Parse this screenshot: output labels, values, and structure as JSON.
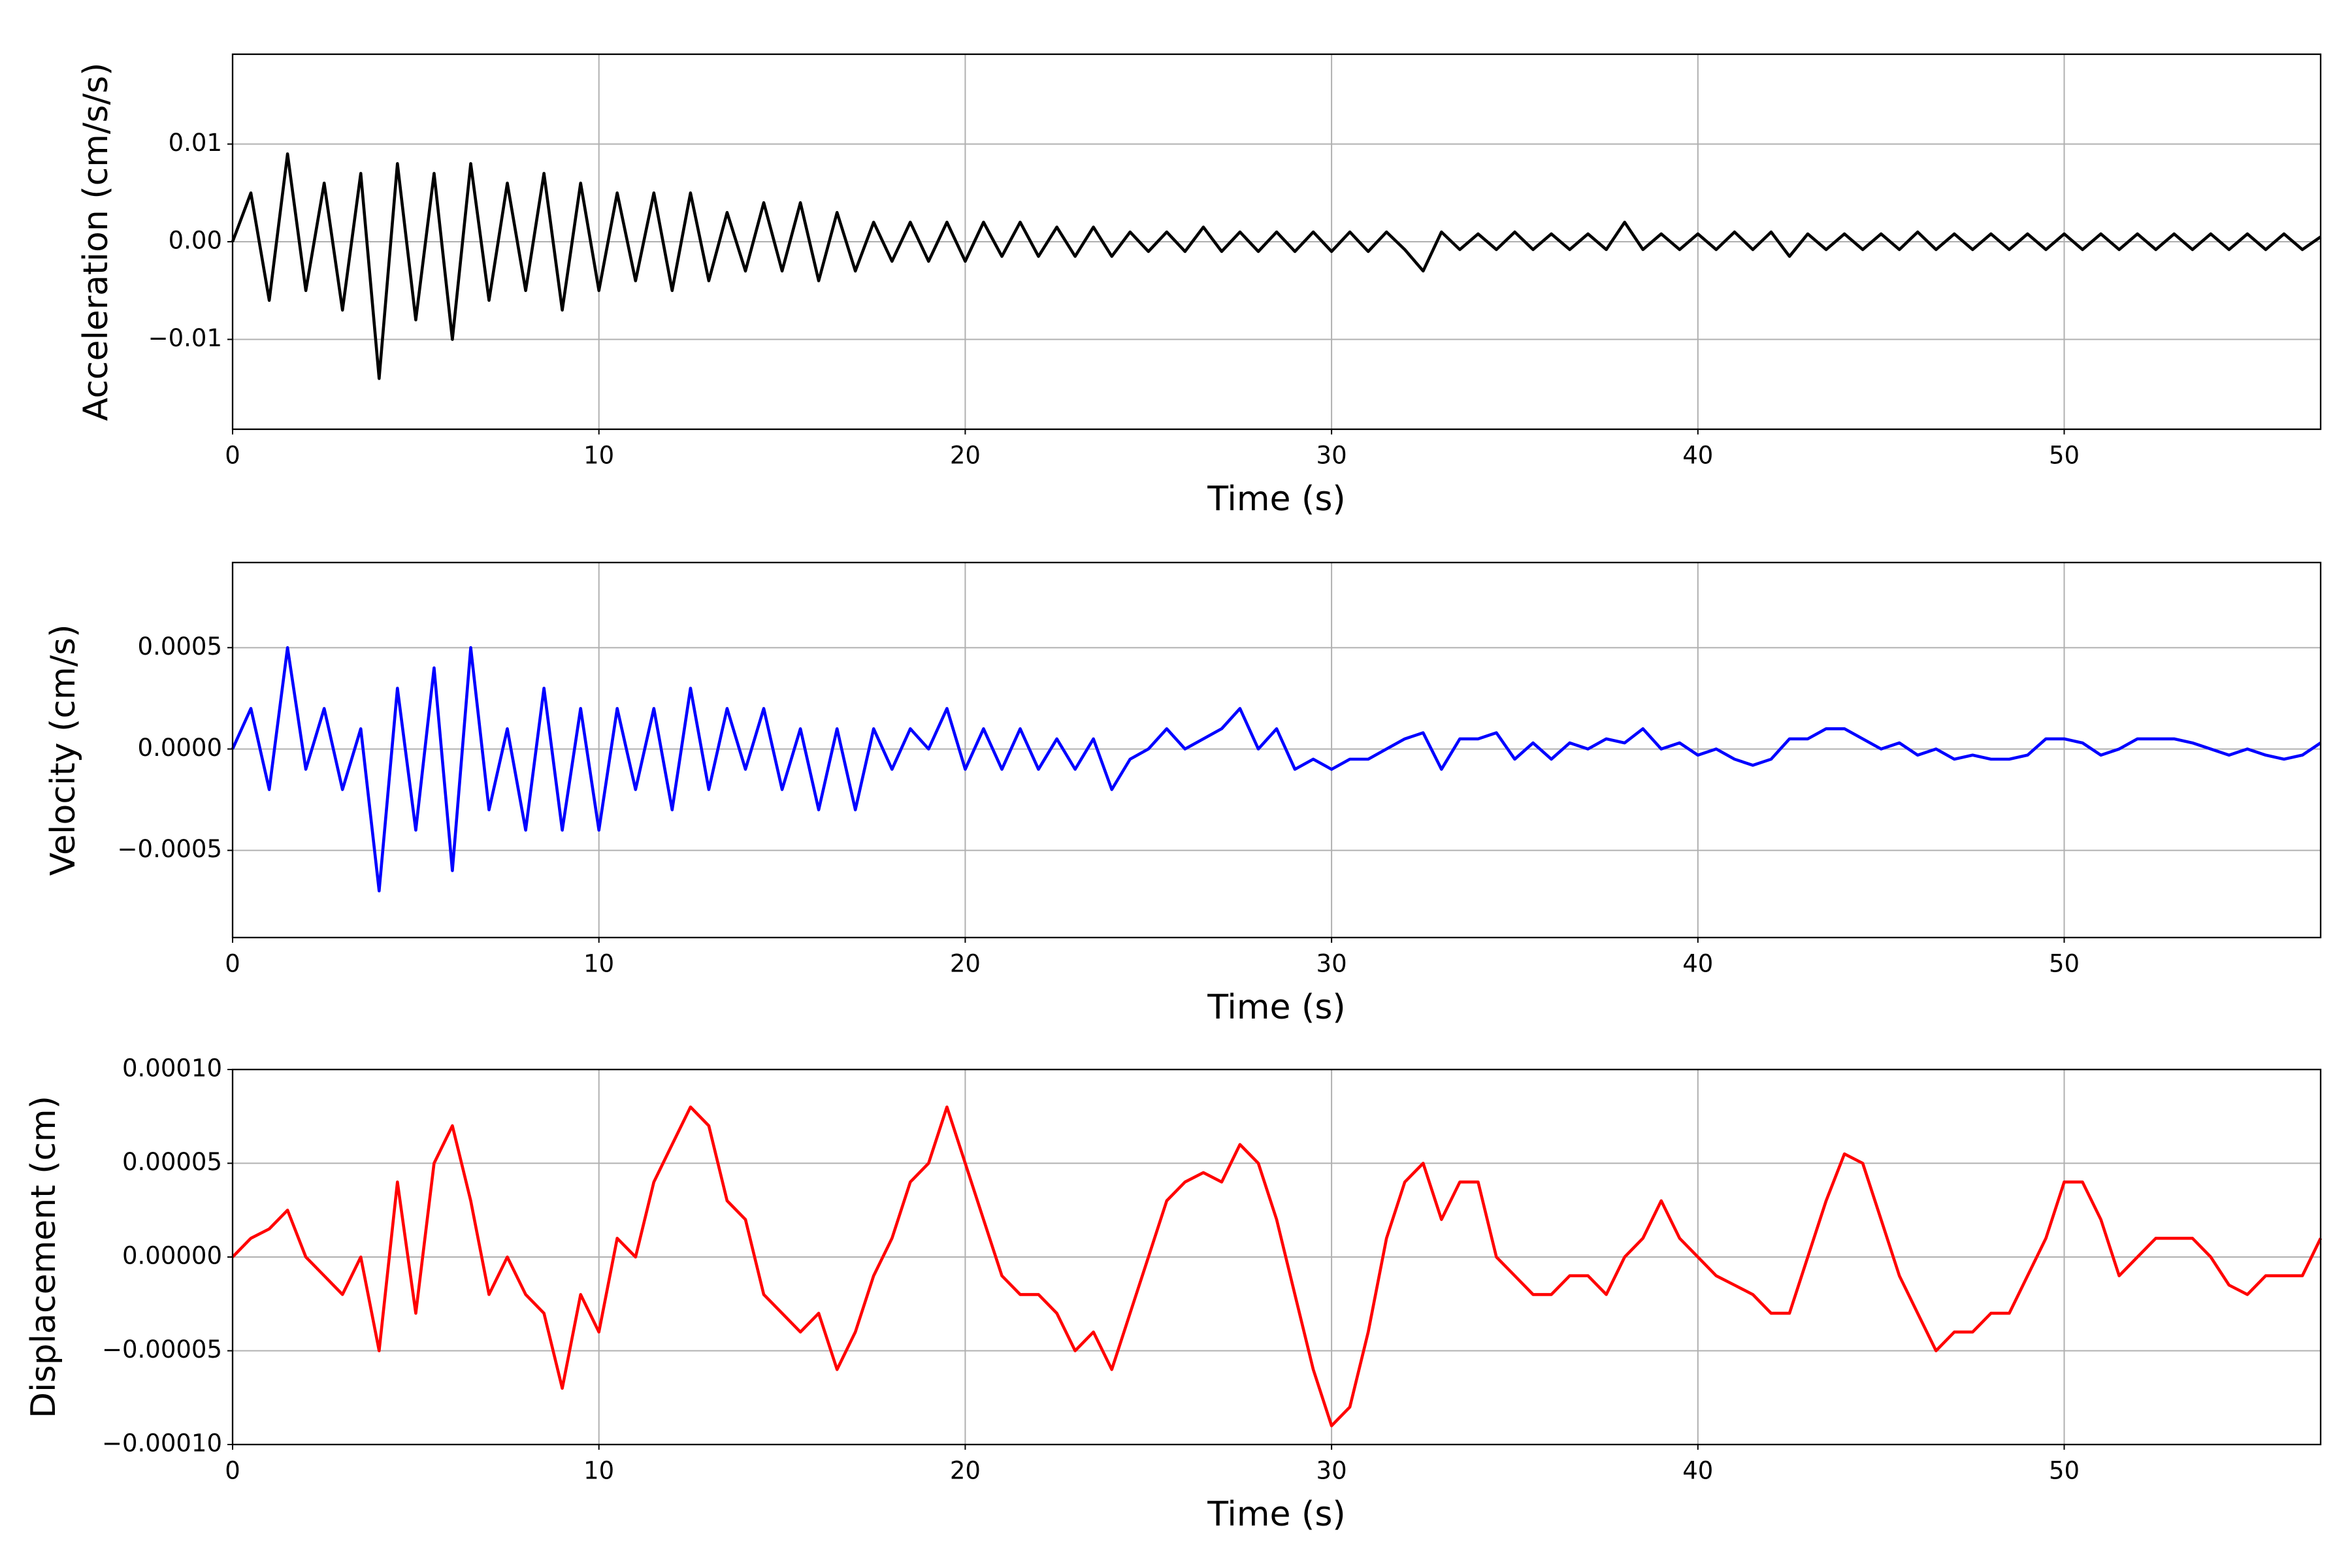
{
  "chart_data": [
    {
      "type": "line",
      "xlabel": "Time (s)",
      "ylabel": "Acceleration (cm/s/s)",
      "color": "#000000",
      "grid": true,
      "xlim": [
        0,
        57
      ],
      "xticks": [
        0,
        10,
        20,
        30,
        40,
        50
      ],
      "ylim": [
        -0.0192,
        0.0192
      ],
      "yticks": [
        {
          "value": -0.01,
          "label": "−0.01"
        },
        {
          "value": 0,
          "label": "0.00"
        },
        0.01
      ],
      "x": [
        0,
        0.5,
        1,
        1.5,
        2,
        2.5,
        3,
        3.5,
        4,
        4.5,
        5,
        5.5,
        6,
        6.5,
        7,
        7.5,
        8,
        8.5,
        9,
        9.5,
        10,
        10.5,
        11,
        11.5,
        12,
        12.5,
        13,
        13.5,
        14,
        14.5,
        15,
        15.5,
        16,
        16.5,
        17,
        17.5,
        18,
        18.5,
        19,
        19.5,
        20,
        20.5,
        21,
        21.5,
        22,
        22.5,
        23,
        23.5,
        24,
        24.5,
        25,
        25.5,
        26,
        26.5,
        27,
        27.5,
        28,
        28.5,
        29,
        29.5,
        30,
        30.5,
        31,
        31.5,
        32,
        32.5,
        33,
        33.5,
        34,
        34.5,
        35,
        35.5,
        36,
        36.5,
        37,
        37.5,
        38,
        38.5,
        39,
        39.5,
        40,
        40.5,
        41,
        41.5,
        42,
        42.5,
        43,
        43.5,
        44,
        44.5,
        45,
        45.5,
        46,
        46.5,
        47,
        47.5,
        48,
        48.5,
        49,
        49.5,
        50,
        50.5,
        51,
        51.5,
        52,
        52.5,
        53,
        53.5,
        54,
        54.5,
        55,
        55.5,
        56,
        56.5,
        57
      ],
      "values": [
        0,
        0.005,
        -0.006,
        0.009,
        -0.005,
        0.006,
        -0.007,
        0.007,
        -0.014,
        0.008,
        -0.008,
        0.007,
        -0.01,
        0.008,
        -0.006,
        0.006,
        -0.005,
        0.007,
        -0.007,
        0.006,
        -0.005,
        0.005,
        -0.004,
        0.005,
        -0.005,
        0.005,
        -0.004,
        0.003,
        -0.003,
        0.004,
        -0.003,
        0.004,
        -0.004,
        0.003,
        -0.003,
        0.002,
        -0.002,
        0.002,
        -0.002,
        0.002,
        -0.002,
        0.002,
        -0.0015,
        0.002,
        -0.0015,
        0.0015,
        -0.0015,
        0.0015,
        -0.0015,
        0.001,
        -0.001,
        0.001,
        -0.001,
        0.0015,
        -0.001,
        0.001,
        -0.001,
        0.001,
        -0.001,
        0.001,
        -0.001,
        0.001,
        -0.001,
        0.001,
        -0.0008,
        -0.003,
        0.001,
        -0.0008,
        0.0008,
        -0.0008,
        0.001,
        -0.0008,
        0.0008,
        -0.0008,
        0.0008,
        -0.0008,
        0.002,
        -0.0008,
        0.0008,
        -0.0008,
        0.0008,
        -0.0008,
        0.001,
        -0.0008,
        0.001,
        -0.0015,
        0.0008,
        -0.0008,
        0.0008,
        -0.0008,
        0.0008,
        -0.0008,
        0.001,
        -0.0008,
        0.0008,
        -0.0008,
        0.0008,
        -0.0008,
        0.0008,
        -0.0008,
        0.0008,
        -0.0008,
        0.0008,
        -0.0008,
        0.0008,
        -0.0008,
        0.0008,
        -0.0008,
        0.0008,
        -0.0008,
        0.0008,
        -0.0008,
        0.0008,
        -0.0008,
        0.0005
      ]
    },
    {
      "type": "line",
      "xlabel": "Time (s)",
      "ylabel": "Velocity (cm/s)",
      "color": "#0000ff",
      "grid": true,
      "xlim": [
        0,
        57
      ],
      "xticks": [
        0,
        10,
        20,
        30,
        40,
        50
      ],
      "ylim": [
        -0.00093,
        0.00092
      ],
      "yticks": [
        {
          "value": -0.0005,
          "label": "−0.0005"
        },
        {
          "value": 0,
          "label": "0.0000"
        },
        0.0005
      ],
      "x": [
        0,
        0.5,
        1,
        1.5,
        2,
        2.5,
        3,
        3.5,
        4,
        4.5,
        5,
        5.5,
        6,
        6.5,
        7,
        7.5,
        8,
        8.5,
        9,
        9.5,
        10,
        10.5,
        11,
        11.5,
        12,
        12.5,
        13,
        13.5,
        14,
        14.5,
        15,
        15.5,
        16,
        16.5,
        17,
        17.5,
        18,
        18.5,
        19,
        19.5,
        20,
        20.5,
        21,
        21.5,
        22,
        22.5,
        23,
        23.5,
        24,
        24.5,
        25,
        25.5,
        26,
        26.5,
        27,
        27.5,
        28,
        28.5,
        29,
        29.5,
        30,
        30.5,
        31,
        31.5,
        32,
        32.5,
        33,
        33.5,
        34,
        34.5,
        35,
        35.5,
        36,
        36.5,
        37,
        37.5,
        38,
        38.5,
        39,
        39.5,
        40,
        40.5,
        41,
        41.5,
        42,
        42.5,
        43,
        43.5,
        44,
        44.5,
        45,
        45.5,
        46,
        46.5,
        47,
        47.5,
        48,
        48.5,
        49,
        49.5,
        50,
        50.5,
        51,
        51.5,
        52,
        52.5,
        53,
        53.5,
        54,
        54.5,
        55,
        55.5,
        56,
        56.5,
        57
      ],
      "values": [
        0,
        0.0002,
        -0.0002,
        0.0005,
        -0.0001,
        0.0002,
        -0.0002,
        0.0001,
        -0.0007,
        0.0003,
        -0.0004,
        0.0004,
        -0.0006,
        0.0005,
        -0.0003,
        0.0001,
        -0.0004,
        0.0003,
        -0.0004,
        0.0002,
        -0.0004,
        0.0002,
        -0.0002,
        0.0002,
        -0.0003,
        0.0003,
        -0.0002,
        0.0002,
        -0.0001,
        0.0002,
        -0.0002,
        0.0001,
        -0.0003,
        0.0001,
        -0.0003,
        0.0001,
        -0.0001,
        0.0001,
        0,
        0.0002,
        -0.0001,
        0.0001,
        -0.0001,
        0.0001,
        -0.0001,
        5e-05,
        -0.0001,
        5e-05,
        -0.0002,
        -5e-05,
        0,
        0.0001,
        0,
        5e-05,
        0.0001,
        0.0002,
        0,
        0.0001,
        -0.0001,
        -5e-05,
        -0.0001,
        -5e-05,
        -5e-05,
        0,
        5e-05,
        8e-05,
        -0.0001,
        5e-05,
        5e-05,
        8e-05,
        -5e-05,
        3e-05,
        -5e-05,
        3e-05,
        0,
        5e-05,
        3e-05,
        0.0001,
        0,
        3e-05,
        -3e-05,
        0,
        -5e-05,
        -8e-05,
        -5e-05,
        5e-05,
        5e-05,
        0.0001,
        0.0001,
        5e-05,
        0,
        3e-05,
        -3e-05,
        0,
        -5e-05,
        -3e-05,
        -5e-05,
        -5e-05,
        -3e-05,
        5e-05,
        5e-05,
        3e-05,
        -3e-05,
        0,
        5e-05,
        5e-05,
        5e-05,
        3e-05,
        0,
        -3e-05,
        0,
        -3e-05,
        -5e-05,
        -3e-05,
        3e-05
      ]
    },
    {
      "type": "line",
      "xlabel": "Time (s)",
      "ylabel": "Displacement (cm)",
      "color": "#ff0000",
      "grid": true,
      "xlim": [
        0,
        57
      ],
      "xticks": [
        0,
        10,
        20,
        30,
        40,
        50
      ],
      "ylim": [
        -0.0001,
        0.0001
      ],
      "yticks": [
        {
          "value": -0.0001,
          "label": "−0.00010"
        },
        {
          "value": -5e-05,
          "label": "−0.00005"
        },
        {
          "value": 0,
          "label": "0.00000"
        },
        5e-05,
        {
          "value": 0.0001,
          "label": "0.00010"
        }
      ],
      "x": [
        0,
        0.5,
        1,
        1.5,
        2,
        2.5,
        3,
        3.5,
        4,
        4.5,
        5,
        5.5,
        6,
        6.5,
        7,
        7.5,
        8,
        8.5,
        9,
        9.5,
        10,
        10.5,
        11,
        11.5,
        12,
        12.5,
        13,
        13.5,
        14,
        14.5,
        15,
        15.5,
        16,
        16.5,
        17,
        17.5,
        18,
        18.5,
        19,
        19.5,
        20,
        20.5,
        21,
        21.5,
        22,
        22.5,
        23,
        23.5,
        24,
        24.5,
        25,
        25.5,
        26,
        26.5,
        27,
        27.5,
        28,
        28.5,
        29,
        29.5,
        30,
        30.5,
        31,
        31.5,
        32,
        32.5,
        33,
        33.5,
        34,
        34.5,
        35,
        35.5,
        36,
        36.5,
        37,
        37.5,
        38,
        38.5,
        39,
        39.5,
        40,
        40.5,
        41,
        41.5,
        42,
        42.5,
        43,
        43.5,
        44,
        44.5,
        45,
        45.5,
        46,
        46.5,
        47,
        47.5,
        48,
        48.5,
        49,
        49.5,
        50,
        50.5,
        51,
        51.5,
        52,
        52.5,
        53,
        53.5,
        54,
        54.5,
        55,
        55.5,
        56,
        56.5,
        57
      ],
      "values": [
        0,
        1e-05,
        1.5e-05,
        2.5e-05,
        0,
        -1e-05,
        -2e-05,
        0,
        -5e-05,
        4e-05,
        -3e-05,
        5e-05,
        7e-05,
        3e-05,
        -2e-05,
        0,
        -2e-05,
        -3e-05,
        -7e-05,
        -2e-05,
        -4e-05,
        1e-05,
        0,
        4e-05,
        6e-05,
        8e-05,
        7e-05,
        3e-05,
        2e-05,
        -2e-05,
        -3e-05,
        -4e-05,
        -3e-05,
        -6e-05,
        -4e-05,
        -1e-05,
        1e-05,
        4e-05,
        5e-05,
        8e-05,
        5e-05,
        2e-05,
        -1e-05,
        -2e-05,
        -2e-05,
        -3e-05,
        -5e-05,
        -4e-05,
        -6e-05,
        -3e-05,
        0,
        3e-05,
        4e-05,
        4.5e-05,
        4e-05,
        6e-05,
        5e-05,
        2e-05,
        -2e-05,
        -6e-05,
        -9e-05,
        -8e-05,
        -4e-05,
        1e-05,
        4e-05,
        5e-05,
        2e-05,
        4e-05,
        4e-05,
        0,
        -1e-05,
        -2e-05,
        -2e-05,
        -1e-05,
        -1e-05,
        -2e-05,
        0,
        1e-05,
        3e-05,
        1e-05,
        0,
        -1e-05,
        -1.5e-05,
        -2e-05,
        -3e-05,
        -3e-05,
        0,
        3e-05,
        5.5e-05,
        5e-05,
        2e-05,
        -1e-05,
        -3e-05,
        -5e-05,
        -4e-05,
        -4e-05,
        -3e-05,
        -3e-05,
        -1e-05,
        1e-05,
        4e-05,
        4e-05,
        2e-05,
        -1e-05,
        0,
        1e-05,
        1e-05,
        1e-05,
        0,
        -1.5e-05,
        -2e-05,
        -1e-05,
        -1e-05,
        -1e-05,
        1e-05
      ]
    }
  ]
}
